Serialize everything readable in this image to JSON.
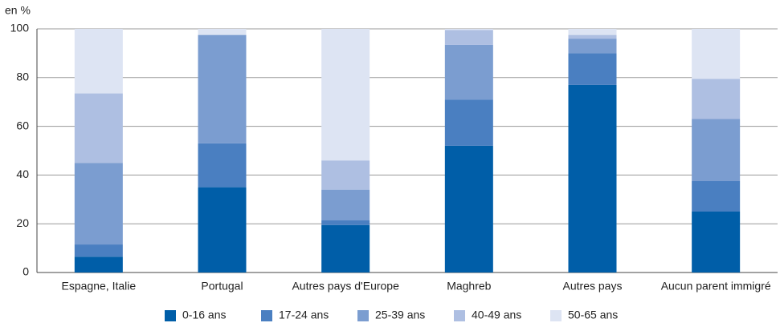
{
  "chart_data": {
    "type": "bar",
    "stacked": true,
    "y_unit_label": "en %",
    "categories": [
      "Espagne, Italie",
      "Portugal",
      "Autres pays d'Europe",
      "Maghreb",
      "Autres pays",
      "Aucun parent immigré"
    ],
    "series": [
      {
        "name": "0-16 ans",
        "color": "#005ea8",
        "values": [
          6.5,
          35,
          19.5,
          52,
          77,
          25
        ]
      },
      {
        "name": "17-24 ans",
        "color": "#4a7fc1",
        "values": [
          5,
          18,
          2,
          19,
          13,
          12.5
        ]
      },
      {
        "name": "25-39 ans",
        "color": "#7b9dd0",
        "values": [
          33.5,
          44.5,
          12.5,
          22.5,
          6,
          25.5
        ]
      },
      {
        "name": "40-49 ans",
        "color": "#aebfe2",
        "values": [
          28.5,
          0,
          12,
          6,
          1.5,
          16.5
        ]
      },
      {
        "name": "50-65 ans",
        "color": "#dde4f3",
        "values": [
          26.5,
          2.5,
          54,
          0.5,
          2.5,
          20.5
        ]
      }
    ],
    "ylim": [
      0,
      100
    ],
    "yticks": [
      0,
      20,
      40,
      60,
      80,
      100
    ],
    "grid": true,
    "legend": "bottom"
  }
}
